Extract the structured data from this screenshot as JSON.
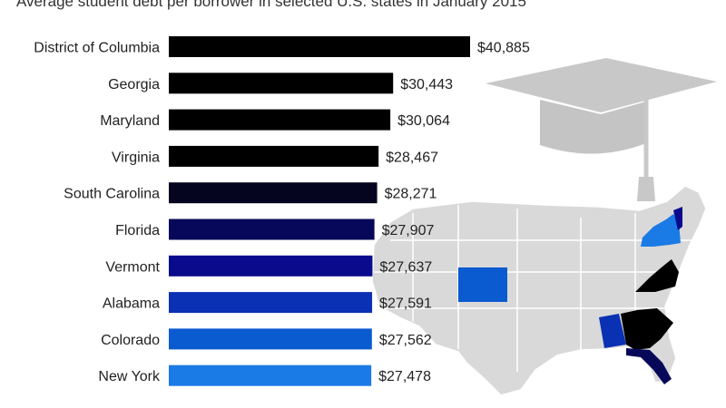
{
  "subtitle": "Average student debt per borrower in selected U.S. states in January 2015",
  "chart_data": {
    "type": "bar",
    "orientation": "horizontal",
    "title": "",
    "subtitle": "Average student debt per borrower in selected U.S. states in January 2015",
    "xlabel": "",
    "ylabel": "",
    "grid": false,
    "legend": "none",
    "xlim": [
      0,
      40885
    ],
    "categories": [
      "District of Columbia",
      "Georgia",
      "Maryland",
      "Virginia",
      "South Carolina",
      "Florida",
      "Vermont",
      "Alabama",
      "Colorado",
      "New York"
    ],
    "values": [
      40885,
      30443,
      30064,
      28467,
      28271,
      27907,
      27637,
      27591,
      27562,
      27478
    ],
    "value_labels": [
      "$40,885",
      "$30,443",
      "$30,064",
      "$28,467",
      "$28,271",
      "$27,907",
      "$27,637",
      "$27,591",
      "$27,562",
      "$27,478"
    ],
    "colors": [
      "#000000",
      "#000000",
      "#000000",
      "#000000",
      "#05051f",
      "#08085a",
      "#0a0a8c",
      "#0a30b4",
      "#0a5ad0",
      "#1a7ae6"
    ]
  }
}
